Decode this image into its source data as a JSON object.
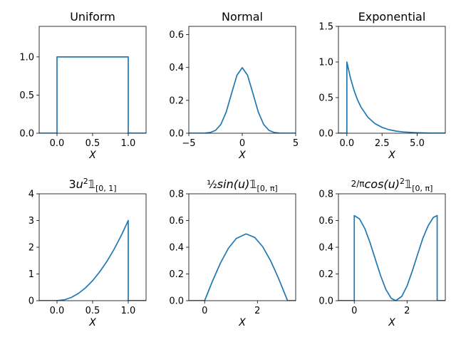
{
  "chart_data": [
    {
      "type": "line",
      "title": "Uniform",
      "xlabel": "X",
      "xlim": [
        -0.25,
        1.25
      ],
      "ylim": [
        0,
        1.4
      ],
      "xticks": [
        0.0,
        0.5,
        1.0
      ],
      "xticklabels": [
        "0.0",
        "0.5",
        "1.0"
      ],
      "yticks": [
        0.0,
        0.5,
        1.0
      ],
      "yticklabels": [
        "0.0",
        "0.5",
        "1.0"
      ],
      "color": "#1f77b4",
      "series": [
        {
          "x": [
            -0.25,
            0.0,
            0.0,
            1.0,
            1.0,
            1.25
          ],
          "y": [
            0,
            0,
            1,
            1,
            0,
            0
          ]
        }
      ]
    },
    {
      "type": "line",
      "title": "Normal",
      "xlabel": "X",
      "xlim": [
        -5,
        5
      ],
      "ylim": [
        0,
        0.65
      ],
      "xticks": [
        -5,
        0,
        5
      ],
      "xticklabels": [
        "−5",
        "0",
        "5"
      ],
      "yticks": [
        0.0,
        0.2,
        0.4,
        0.6
      ],
      "yticklabels": [
        "0.0",
        "0.2",
        "0.4",
        "0.6"
      ],
      "color": "#1f77b4",
      "series": [
        {
          "x": [
            -5,
            -4,
            -3.5,
            -3,
            -2.5,
            -2,
            -1.5,
            -1,
            -0.5,
            0,
            0.5,
            1,
            1.5,
            2,
            2.5,
            3,
            3.5,
            4,
            5
          ],
          "y": [
            0.0,
            0.0001,
            0.0009,
            0.0044,
            0.0175,
            0.054,
            0.1295,
            0.242,
            0.352,
            0.399,
            0.352,
            0.242,
            0.1295,
            0.054,
            0.0175,
            0.0044,
            0.0009,
            0.0001,
            0.0
          ]
        }
      ]
    },
    {
      "type": "line",
      "title": "Exponential",
      "xlabel": "X",
      "xlim": [
        -0.6,
        7
      ],
      "ylim": [
        0,
        1.5
      ],
      "xticks": [
        0.0,
        2.5,
        5.0
      ],
      "xticklabels": [
        "0.0",
        "2.5",
        "5.0"
      ],
      "yticks": [
        0.0,
        0.5,
        1.0,
        1.5
      ],
      "yticklabels": [
        "0.0",
        "0.5",
        "1.0",
        "1.5"
      ],
      "color": "#1f77b4",
      "series": [
        {
          "x": [
            -0.6,
            0.0,
            0.0,
            0.25,
            0.5,
            0.75,
            1.0,
            1.5,
            2.0,
            2.5,
            3.0,
            3.5,
            4.0,
            5.0,
            6.0,
            7.0
          ],
          "y": [
            0,
            0,
            1.0,
            0.779,
            0.607,
            0.472,
            0.368,
            0.223,
            0.135,
            0.082,
            0.05,
            0.03,
            0.018,
            0.007,
            0.002,
            0.001
          ]
        }
      ]
    },
    {
      "type": "line",
      "title": "3u²𝟙[0,1]",
      "xlabel": "X",
      "xlim": [
        -0.25,
        1.25
      ],
      "ylim": [
        0,
        4
      ],
      "xticks": [
        0.0,
        0.5,
        1.0
      ],
      "xticklabels": [
        "0.0",
        "0.5",
        "1.0"
      ],
      "yticks": [
        0,
        1,
        2,
        3,
        4
      ],
      "yticklabels": [
        "0",
        "1",
        "2",
        "3",
        "4"
      ],
      "color": "#1f77b4",
      "series": [
        {
          "x": [
            -0.25,
            0.0,
            0.1,
            0.2,
            0.3,
            0.4,
            0.5,
            0.6,
            0.7,
            0.8,
            0.9,
            1.0,
            1.0,
            1.25
          ],
          "y": [
            0,
            0,
            0.03,
            0.12,
            0.27,
            0.48,
            0.75,
            1.08,
            1.47,
            1.92,
            2.43,
            3.0,
            0,
            0
          ]
        }
      ]
    },
    {
      "type": "line",
      "title": "½sin(u)𝟙[0,π]",
      "xlabel": "X",
      "xlim": [
        -0.6,
        3.45
      ],
      "ylim": [
        0,
        0.8
      ],
      "xticks": [
        0,
        2
      ],
      "xticklabels": [
        "0",
        "2"
      ],
      "yticks": [
        0.0,
        0.2,
        0.4,
        0.6,
        0.8
      ],
      "yticklabels": [
        "0.0",
        "0.2",
        "0.4",
        "0.6",
        "0.8"
      ],
      "color": "#1f77b4",
      "series": [
        {
          "x": [
            -0.6,
            0.0,
            0.3,
            0.6,
            0.9,
            1.2,
            1.5708,
            1.9,
            2.2,
            2.5,
            2.8,
            3.1416,
            3.45
          ],
          "y": [
            0,
            0,
            0.148,
            0.282,
            0.392,
            0.466,
            0.5,
            0.473,
            0.404,
            0.299,
            0.167,
            0,
            0
          ]
        }
      ]
    },
    {
      "type": "line",
      "title": "(2/π)cos(u)²𝟙[0,π]",
      "xlabel": "X",
      "xlim": [
        -0.6,
        3.45
      ],
      "ylim": [
        0,
        0.8
      ],
      "xticks": [
        0,
        2
      ],
      "xticklabels": [
        "0",
        "2"
      ],
      "yticks": [
        0.0,
        0.2,
        0.4,
        0.6,
        0.8
      ],
      "yticklabels": [
        "0.0",
        "0.2",
        "0.4",
        "0.6",
        "0.8"
      ],
      "color": "#1f77b4",
      "series": [
        {
          "x": [
            -0.6,
            0.0,
            0.0,
            0.2,
            0.4,
            0.6,
            0.8,
            1.0,
            1.2,
            1.4,
            1.5708,
            1.8,
            2.0,
            2.2,
            2.4,
            2.6,
            2.8,
            3.0,
            3.1416,
            3.1416,
            3.45
          ],
          "y": [
            0,
            0,
            0.637,
            0.612,
            0.54,
            0.433,
            0.309,
            0.186,
            0.083,
            0.018,
            0.0,
            0.032,
            0.11,
            0.223,
            0.346,
            0.468,
            0.561,
            0.624,
            0.637,
            0,
            0
          ]
        }
      ]
    }
  ]
}
